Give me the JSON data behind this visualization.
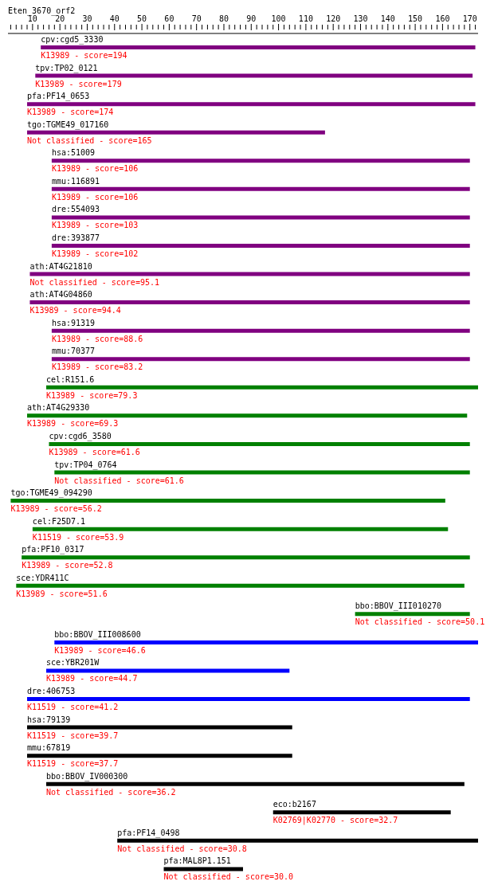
{
  "chart_data": {
    "type": "bar",
    "orientation": "horizontal",
    "title": "Eten_3670_orf2",
    "categories": [
      "cpv:cgd5_3330",
      "tpv:TP02_0121",
      "pfa:PF14_0653",
      "tgo:TGME49_017160",
      "hsa:51009",
      "mmu:116891",
      "dre:554093",
      "dre:393877",
      "ath:AT4G21810",
      "ath:AT4G04860",
      "hsa:91319",
      "mmu:70377",
      "cel:R151.6",
      "ath:AT4G29330",
      "cpv:cgd6_3580",
      "tpv:TP04_0764",
      "tgo:TGME49_094290",
      "cel:F25D7.1",
      "pfa:PF10_0317",
      "sce:YDR411C",
      "bbo:BBOV_III010270",
      "bbo:BBOV_III008600",
      "sce:YBR201W",
      "dre:406753",
      "hsa:79139",
      "mmu:67819",
      "bbo:BBOV_IV000300",
      "eco:b2167",
      "pfa:PF14_0498",
      "pfa:MAL8P1.151"
    ],
    "base": [
      13,
      11,
      8,
      8,
      17,
      17,
      17,
      17,
      9,
      9,
      17,
      17,
      15,
      8,
      16,
      18,
      2,
      10,
      6,
      4,
      128,
      18,
      15,
      8,
      8,
      8,
      15,
      98,
      41,
      58
    ],
    "values": [
      159,
      160,
      164,
      109,
      153,
      153,
      153,
      153,
      161,
      161,
      153,
      153,
      158,
      161,
      154,
      152,
      159,
      152,
      164,
      164,
      42,
      155,
      89,
      162,
      97,
      97,
      153,
      65,
      132,
      29
    ],
    "colors": [
      "#800080",
      "#800080",
      "#800080",
      "#800080",
      "#800080",
      "#800080",
      "#800080",
      "#800080",
      "#800080",
      "#800080",
      "#800080",
      "#800080",
      "#008000",
      "#008000",
      "#008000",
      "#008000",
      "#008000",
      "#008000",
      "#008000",
      "#008000",
      "#008000",
      "#0000ff",
      "#0000ff",
      "#0000ff",
      "#000000",
      "#000000",
      "#000000",
      "#000000",
      "#000000",
      "#000000"
    ],
    "xlim": [
      1,
      173
    ],
    "xticks": [
      {
        "value": 2,
        "label": null
      },
      {
        "value": 4,
        "label": null
      },
      {
        "value": 6,
        "label": null
      },
      {
        "value": 8,
        "label": null
      },
      10,
      {
        "value": 12,
        "label": null
      },
      {
        "value": 14,
        "label": null
      },
      {
        "value": 16,
        "label": null
      },
      {
        "value": 18,
        "label": null
      },
      20,
      {
        "value": 22,
        "label": null
      },
      {
        "value": 24,
        "label": null
      },
      {
        "value": 26,
        "label": null
      },
      {
        "value": 28,
        "label": null
      },
      30,
      {
        "value": 32,
        "label": null
      },
      {
        "value": 34,
        "label": null
      },
      {
        "value": 36,
        "label": null
      },
      {
        "value": 38,
        "label": null
      },
      40,
      {
        "value": 42,
        "label": null
      },
      {
        "value": 44,
        "label": null
      },
      {
        "value": 46,
        "label": null
      },
      {
        "value": 48,
        "label": null
      },
      50,
      {
        "value": 52,
        "label": null
      },
      {
        "value": 54,
        "label": null
      },
      {
        "value": 56,
        "label": null
      },
      {
        "value": 58,
        "label": null
      },
      60,
      {
        "value": 62,
        "label": null
      },
      {
        "value": 64,
        "label": null
      },
      {
        "value": 66,
        "label": null
      },
      {
        "value": 68,
        "label": null
      },
      70,
      {
        "value": 72,
        "label": null
      },
      {
        "value": 74,
        "label": null
      },
      {
        "value": 76,
        "label": null
      },
      {
        "value": 78,
        "label": null
      },
      80,
      {
        "value": 82,
        "label": null
      },
      {
        "value": 84,
        "label": null
      },
      {
        "value": 86,
        "label": null
      },
      {
        "value": 88,
        "label": null
      },
      90,
      {
        "value": 92,
        "label": null
      },
      {
        "value": 94,
        "label": null
      },
      {
        "value": 96,
        "label": null
      },
      {
        "value": 98,
        "label": null
      },
      100,
      {
        "value": 102,
        "label": null
      },
      {
        "value": 104,
        "label": null
      },
      {
        "value": 106,
        "label": null
      },
      {
        "value": 108,
        "label": null
      },
      110,
      {
        "value": 112,
        "label": null
      },
      {
        "value": 114,
        "label": null
      },
      {
        "value": 116,
        "label": null
      },
      {
        "value": 118,
        "label": null
      },
      120,
      {
        "value": 122,
        "label": null
      },
      {
        "value": 124,
        "label": null
      },
      {
        "value": 126,
        "label": null
      },
      {
        "value": 128,
        "label": null
      },
      130,
      {
        "value": 132,
        "label": null
      },
      {
        "value": 134,
        "label": null
      },
      {
        "value": 136,
        "label": null
      },
      {
        "value": 138,
        "label": null
      },
      140,
      {
        "value": 142,
        "label": null
      },
      {
        "value": 144,
        "label": null
      },
      {
        "value": 146,
        "label": null
      },
      {
        "value": 148,
        "label": null
      },
      150,
      {
        "value": 152,
        "label": null
      },
      {
        "value": 154,
        "label": null
      },
      {
        "value": 156,
        "label": null
      },
      {
        "value": 158,
        "label": null
      },
      160,
      {
        "value": 162,
        "label": null
      },
      {
        "value": 164,
        "label": null
      },
      {
        "value": 166,
        "label": null
      },
      {
        "value": 168,
        "label": null
      },
      170,
      {
        "value": 172,
        "label": null
      }
    ],
    "grid": false,
    "legend": false,
    "annotations": [
      {
        "text": "K13989 - score=194",
        "x": 13,
        "y": "cpv:cgd5_3330"
      },
      {
        "text": "K13989 - score=179",
        "x": 11,
        "y": "tpv:TP02_0121"
      },
      {
        "text": "K13989 - score=174",
        "x": 8,
        "y": "pfa:PF14_0653"
      },
      {
        "text": "Not classified - score=165",
        "x": 8,
        "y": "tgo:TGME49_017160"
      },
      {
        "text": "K13989 - score=106",
        "x": 17,
        "y": "hsa:51009"
      },
      {
        "text": "K13989 - score=106",
        "x": 17,
        "y": "mmu:116891"
      },
      {
        "text": "K13989 - score=103",
        "x": 17,
        "y": "dre:554093"
      },
      {
        "text": "K13989 - score=102",
        "x": 17,
        "y": "dre:393877"
      },
      {
        "text": "Not classified - score=95.1",
        "x": 9,
        "y": "ath:AT4G21810"
      },
      {
        "text": "K13989 - score=94.4",
        "x": 9,
        "y": "ath:AT4G04860"
      },
      {
        "text": "K13989 - score=88.6",
        "x": 17,
        "y": "hsa:91319"
      },
      {
        "text": "K13989 - score=83.2",
        "x": 17,
        "y": "mmu:70377"
      },
      {
        "text": "K13989 - score=79.3",
        "x": 15,
        "y": "cel:R151.6"
      },
      {
        "text": "K13989 - score=69.3",
        "x": 8,
        "y": "ath:AT4G29330"
      },
      {
        "text": "K13989 - score=61.6",
        "x": 16,
        "y": "cpv:cgd6_3580"
      },
      {
        "text": "Not classified - score=61.6",
        "x": 18,
        "y": "tpv:TP04_0764"
      },
      {
        "text": "K13989 - score=56.2",
        "x": 2,
        "y": "tgo:TGME49_094290"
      },
      {
        "text": "K11519 - score=53.9",
        "x": 10,
        "y": "cel:F25D7.1"
      },
      {
        "text": "K13989 - score=52.8",
        "x": 6,
        "y": "pfa:PF10_0317"
      },
      {
        "text": "K13989 - score=51.6",
        "x": 4,
        "y": "sce:YDR411C"
      },
      {
        "text": "Not classified - score=50.1",
        "x": 128,
        "y": "bbo:BBOV_III010270"
      },
      {
        "text": "K13989 - score=46.6",
        "x": 18,
        "y": "bbo:BBOV_III008600"
      },
      {
        "text": "K13989 - score=44.7",
        "x": 15,
        "y": "sce:YBR201W"
      },
      {
        "text": "K11519 - score=41.2",
        "x": 8,
        "y": "dre:406753"
      },
      {
        "text": "K11519 - score=39.7",
        "x": 8,
        "y": "hsa:79139"
      },
      {
        "text": "K11519 - score=37.7",
        "x": 8,
        "y": "mmu:67819"
      },
      {
        "text": "Not classified - score=36.2",
        "x": 15,
        "y": "bbo:BBOV_IV000300"
      },
      {
        "text": "K02769|K02770 - score=32.7",
        "x": 98,
        "y": "eco:b2167"
      },
      {
        "text": "Not classified - score=30.8",
        "x": 41,
        "y": "pfa:PF14_0498"
      },
      {
        "text": "Not classified - score=30.0",
        "x": 58,
        "y": "pfa:MAL8P1.151"
      }
    ]
  }
}
